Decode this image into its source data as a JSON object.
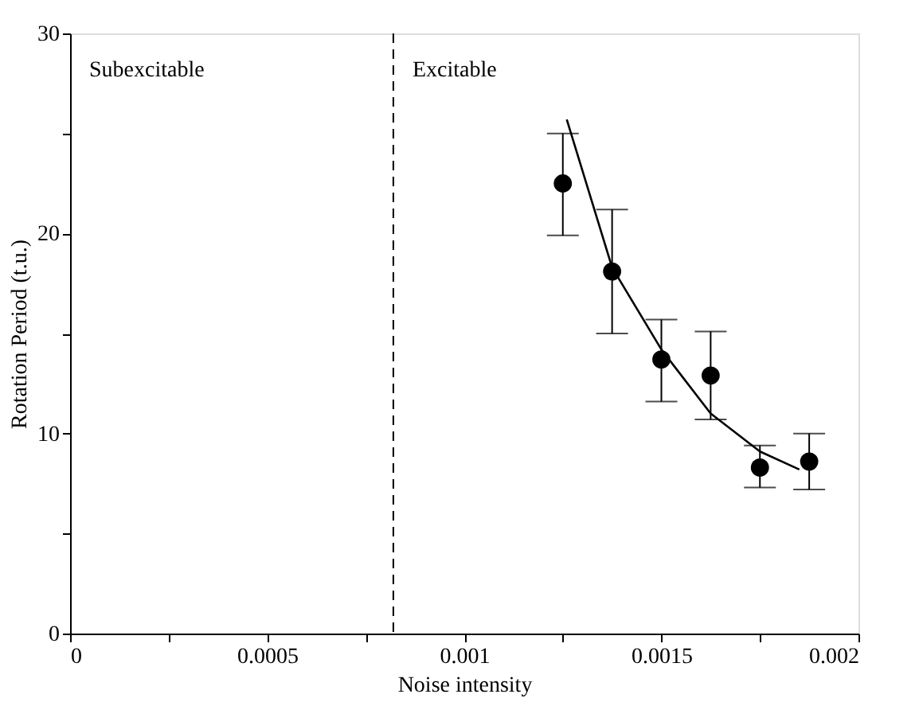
{
  "chart_data": {
    "type": "scatter",
    "xlabel": "Noise intensity",
    "ylabel": "Rotation Period (t.u.)",
    "x": [
      0.00125,
      0.001375,
      0.0015,
      0.001625,
      0.00175,
      0.001875
    ],
    "series": [
      {
        "color": "#000000",
        "marker": "circle",
        "values": [
          22.5,
          18.1,
          13.7,
          12.9,
          8.3,
          8.6
        ],
        "errors": [
          [
            19.9,
            25.0
          ],
          [
            15.0,
            21.2
          ],
          [
            11.6,
            15.7
          ],
          [
            10.7,
            15.1
          ],
          [
            7.3,
            9.4
          ],
          [
            7.2,
            10.0
          ]
        ]
      },
      {
        "type": "line",
        "color": "#000000",
        "marker": "none",
        "line_style": "solid",
        "x": [
          0.00126,
          0.001375,
          0.0015,
          0.001625,
          0.00175,
          0.00185
        ],
        "values": [
          25.7,
          18.3,
          14.2,
          11.0,
          9.1,
          8.2
        ]
      }
    ],
    "xlim": [
      0,
      0.002
    ],
    "ylim": [
      0,
      30
    ],
    "xticks": [
      0,
      {
        "value": 0.00025,
        "label": null
      },
      0.0005,
      {
        "value": 0.00075,
        "label": null
      },
      0.001,
      {
        "value": 0.00125,
        "label": null
      },
      0.0015,
      {
        "value": 0.00175,
        "label": null
      },
      0.002
    ],
    "yticks": [
      0,
      {
        "value": 5,
        "label": null
      },
      10,
      {
        "value": 15,
        "label": null
      },
      20,
      {
        "value": 25,
        "label": null
      },
      30
    ],
    "ref_lines": [
      {
        "axis": "x",
        "value": 0.00082,
        "color": "#000000",
        "line_style": "dashed"
      }
    ],
    "annotations": [
      "Subexcitable",
      "Excitable"
    ],
    "grid": false
  }
}
